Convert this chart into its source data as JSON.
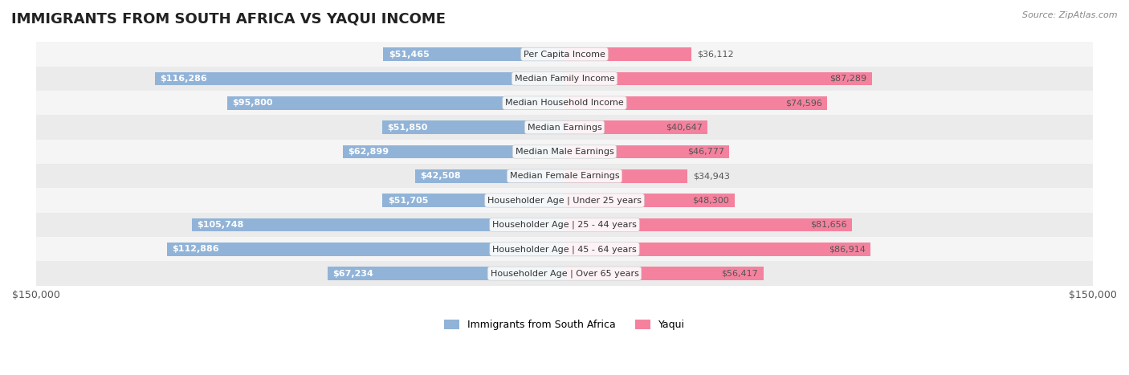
{
  "title": "IMMIGRANTS FROM SOUTH AFRICA VS YAQUI INCOME",
  "source": "Source: ZipAtlas.com",
  "categories": [
    "Per Capita Income",
    "Median Family Income",
    "Median Household Income",
    "Median Earnings",
    "Median Male Earnings",
    "Median Female Earnings",
    "Householder Age | Under 25 years",
    "Householder Age | 25 - 44 years",
    "Householder Age | 45 - 64 years",
    "Householder Age | Over 65 years"
  ],
  "left_values": [
    51465,
    116286,
    95800,
    51850,
    62899,
    42508,
    51705,
    105748,
    112886,
    67234
  ],
  "right_values": [
    36112,
    87289,
    74596,
    40647,
    46777,
    34943,
    48300,
    81656,
    86914,
    56417
  ],
  "left_labels": [
    "$51,465",
    "$116,286",
    "$95,800",
    "$51,850",
    "$62,899",
    "$42,508",
    "$51,705",
    "$105,748",
    "$112,886",
    "$67,234"
  ],
  "right_labels": [
    "$36,112",
    "$87,289",
    "$74,596",
    "$40,647",
    "$46,777",
    "$34,943",
    "$48,300",
    "$81,656",
    "$86,914",
    "$56,417"
  ],
  "max_val": 150000,
  "left_color": "#91b3d7",
  "right_color": "#f4829e",
  "left_color_dark": "#5b8ec4",
  "right_color_dark": "#f05080",
  "bar_height": 0.55,
  "row_bg_light": "#f5f5f5",
  "row_bg_dark": "#ebebeb",
  "legend_left": "Immigrants from South Africa",
  "legend_right": "Yaqui",
  "background_color": "#ffffff"
}
